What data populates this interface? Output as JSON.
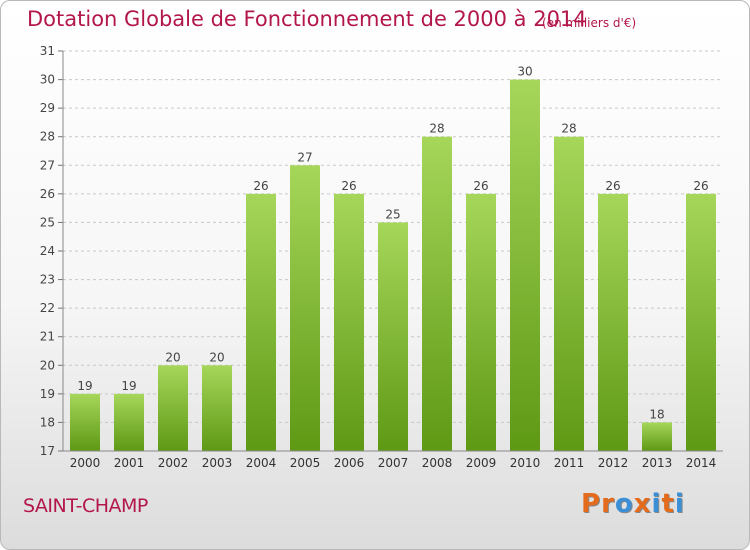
{
  "header": {
    "title": "Dotation Globale de Fonctionnement de 2000 à 2014",
    "subtitle": "(en milliers d'€)"
  },
  "footer": {
    "place": "SAINT-CHAMP",
    "logo": "Proxiti"
  },
  "colors": {
    "title": "#b3174a",
    "bar_top": "#a6d65a",
    "bar_bottom": "#5e9914",
    "grid": "#c8c8c8",
    "logo_letters": [
      "#e46b1c",
      "#e46b1c",
      "#3a8fd6",
      "#e46b1c",
      "#3a8fd6",
      "#e46b1c",
      "#3a8fd6"
    ]
  },
  "chart_data": {
    "type": "bar",
    "title": "Dotation Globale de Fonctionnement de 2000 à 2014",
    "subtitle": "(en milliers d'€)",
    "categories": [
      "2000",
      "2001",
      "2002",
      "2003",
      "2004",
      "2005",
      "2006",
      "2007",
      "2008",
      "2009",
      "2010",
      "2011",
      "2012",
      "2013",
      "2014"
    ],
    "values": [
      19,
      19,
      20,
      20,
      26,
      27,
      26,
      25,
      28,
      26,
      30,
      28,
      26,
      18,
      26
    ],
    "data_labels": [
      "19",
      "19",
      "20",
      "20",
      "26",
      "27",
      "26",
      "25",
      "28",
      "26",
      "30",
      "28",
      "26",
      "18",
      "26"
    ],
    "y_ticks": [
      "17",
      "18",
      "19",
      "20",
      "21",
      "22",
      "23",
      "24",
      "25",
      "26",
      "27",
      "28",
      "29",
      "30",
      "31"
    ],
    "ylim": [
      17,
      31
    ],
    "grid": true,
    "xlabel": "",
    "ylabel": ""
  }
}
